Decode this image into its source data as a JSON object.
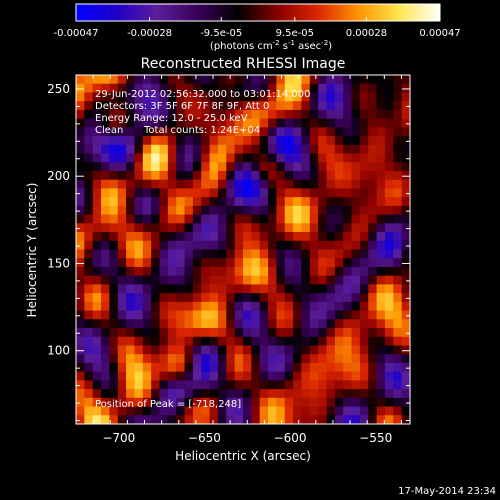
{
  "chart_data": {
    "type": "heatmap",
    "title": "Reconstructed RHESSI Image",
    "xlabel": "Heliocentric X (arcsec)",
    "ylabel": "Heliocentric Y (arcsec)",
    "xlim": [
      -725,
      -530
    ],
    "ylim": [
      58,
      258
    ],
    "x_ticks": [
      -700,
      -650,
      -600,
      -550
    ],
    "y_ticks": [
      100,
      150,
      200,
      250
    ],
    "colorbar": {
      "label_main": "(photons cm",
      "label_sup1": "-2",
      "label_mid": " s",
      "label_sup2": "-1",
      "label_end": " asec",
      "label_sup3": "-2",
      "label_close": ")",
      "range": [
        -0.00047,
        0.00047
      ],
      "tick_labels": [
        "-0.00047",
        "-0.00028",
        "-9.5e-05",
        "9.5e-05",
        "0.00028",
        "0.00047"
      ],
      "colormap": [
        "#0000ff",
        "#2000c8",
        "#5a1e9a",
        "#3a005a",
        "#000000",
        "#8a0000",
        "#dc2800",
        "#ff9600",
        "#ffe650",
        "#ffffff"
      ]
    },
    "annotations": {
      "time_range": "29-Jun-2012 02:56:32.000 to 03:01:14.000",
      "detectors": "Detectors: 3F 5F 6F 7F 8F 9F, Att 0",
      "energy": "Energy Range: 12.0 - 25.0 keV",
      "method": "Clean",
      "counts": "Total counts: 1.24E+04",
      "peak": "Position of Peak = [-718,248]"
    },
    "grid": false
  },
  "footer": {
    "timestamp": "17-May-2014 23:34"
  }
}
